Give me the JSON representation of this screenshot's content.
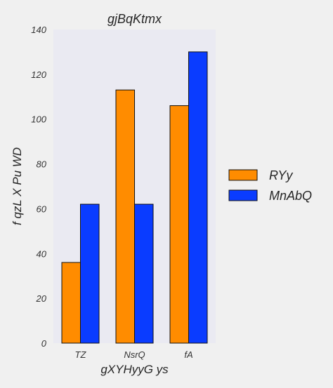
{
  "chart_data": {
    "type": "bar",
    "title": "gjBqKtmx",
    "xlabel": "gXYHyyG ys",
    "ylabel": "f qzL X Pu WD",
    "categories": [
      "TZ",
      "NsrQ",
      "fA"
    ],
    "series": [
      {
        "name": "RYy",
        "values": [
          36,
          113,
          106
        ],
        "color": "#ff8c00"
      },
      {
        "name": "MnAbQ",
        "values": [
          62,
          62,
          130
        ],
        "color": "#0a3cff"
      }
    ],
    "ylim": [
      0,
      140
    ],
    "yticks": [
      0,
      20,
      40,
      60,
      80,
      100,
      120,
      140
    ],
    "grid": false,
    "legend_position": "right",
    "plot_background": "#eaeaf2"
  }
}
